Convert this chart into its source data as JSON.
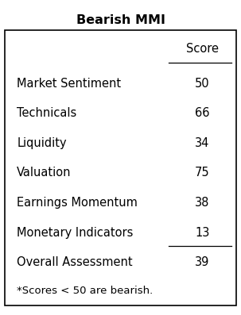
{
  "title": "Bearish MMI",
  "col_header": "Score",
  "rows": [
    {
      "label": "Market Sentiment",
      "value": "50"
    },
    {
      "label": "Technicals",
      "value": "66"
    },
    {
      "label": "Liquidity",
      "value": "34"
    },
    {
      "label": "Valuation",
      "value": "75"
    },
    {
      "label": "Earnings Momentum",
      "value": "38"
    },
    {
      "label": "Monetary Indicators",
      "value": "13"
    },
    {
      "label": "Overall Assessment",
      "value": "39"
    }
  ],
  "footnote": "*Scores < 50 are bearish.",
  "bg_color": "#ffffff",
  "border_color": "#000000",
  "title_fontsize": 11.5,
  "body_fontsize": 10.5,
  "header_fontsize": 10.5,
  "footnote_fontsize": 9.5,
  "underline_after_row": 5
}
